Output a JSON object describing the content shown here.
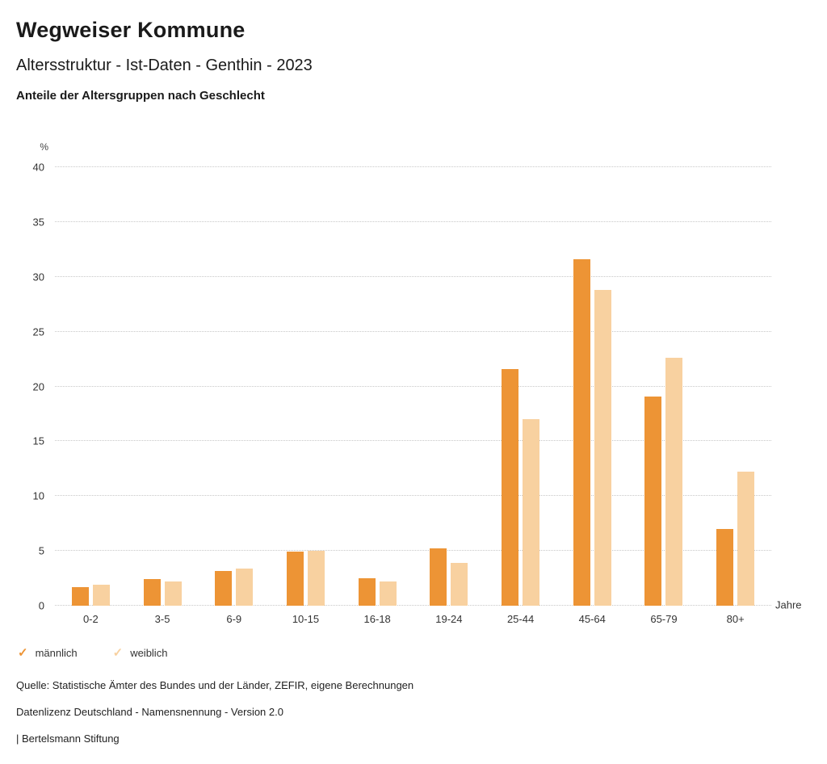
{
  "header": {
    "title": "Wegweiser Kommune",
    "subtitle": "Altersstruktur - Ist-Daten - Genthin - 2023",
    "description": "Anteile der Altersgruppen nach Geschlecht"
  },
  "chart_data": {
    "type": "bar",
    "title": "Anteile der Altersgruppen nach Geschlecht",
    "categories": [
      "0-2",
      "3-5",
      "6-9",
      "10-15",
      "16-18",
      "19-24",
      "25-44",
      "45-64",
      "65-79",
      "80+"
    ],
    "series": [
      {
        "name": "männlich",
        "color": "#ED9435",
        "values": [
          1.7,
          2.4,
          3.2,
          4.9,
          2.5,
          5.2,
          21.6,
          31.6,
          19.1,
          7.0
        ]
      },
      {
        "name": "weiblich",
        "color": "#F8D1A0",
        "values": [
          1.9,
          2.2,
          3.4,
          5.0,
          2.2,
          3.9,
          17.0,
          28.8,
          22.6,
          12.2
        ]
      }
    ],
    "ylabel": "%",
    "xlabel": "Jahre",
    "ylim": [
      0,
      40
    ],
    "yticks": [
      0,
      5,
      10,
      15,
      20,
      25,
      30,
      35,
      40
    ],
    "grid": true,
    "legend_position": "bottom"
  },
  "legend": {
    "items": [
      {
        "label": "männlich",
        "color": "#ED9435",
        "icon": "check"
      },
      {
        "label": "weiblich",
        "color": "#F8D1A0",
        "icon": "check"
      }
    ]
  },
  "footer": {
    "source": "Quelle: Statistische Ämter des Bundes und der Länder, ZEFIR, eigene Berechnungen",
    "license": "Datenlizenz Deutschland - Namensnennung - Version 2.0",
    "attribution": "| Bertelsmann Stiftung"
  }
}
